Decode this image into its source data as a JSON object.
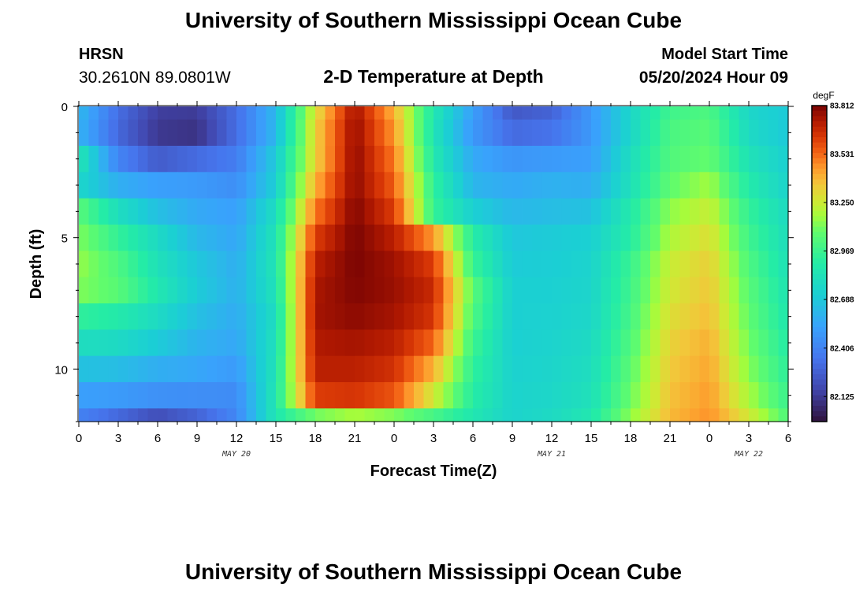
{
  "page_title": "University of Southern Mississippi Ocean Cube",
  "footer_title": "University of Southern Mississippi Ocean Cube",
  "station": {
    "name": "HRSN",
    "coords": "30.2610N  89.0801W"
  },
  "model_start": {
    "label": "Model Start Time",
    "value": "05/20/2024 Hour 09"
  },
  "chart_data": {
    "type": "heatmap",
    "title": "2-D Temperature at Depth",
    "xlabel": "Forecast Time(Z)",
    "ylabel": "Depth (ft)",
    "x_ticks": [
      "0",
      "3",
      "6",
      "9",
      "12",
      "15",
      "18",
      "21",
      "0",
      "3",
      "6",
      "9",
      "12",
      "15",
      "18",
      "21",
      "0",
      "3",
      "6"
    ],
    "x_range_hours": [
      0,
      54
    ],
    "date_labels": [
      {
        "text": "MAY 20",
        "hour": 12
      },
      {
        "text": "MAY 21",
        "hour": 36
      },
      {
        "text": "MAY 22",
        "hour": 51
      }
    ],
    "y_ticks": [
      "0",
      "5",
      "10"
    ],
    "y_range": [
      0,
      12
    ],
    "y_inverted": true,
    "colorbar": {
      "unit": "degF",
      "ticks": [
        "83.812",
        "83.531",
        "83.250",
        "82.969",
        "82.688",
        "82.406",
        "82.125"
      ],
      "min": 81.98,
      "max": 83.812
    },
    "depths_ft": [
      0,
      1,
      2,
      3,
      4,
      5,
      6,
      7,
      8,
      9,
      10,
      11,
      12
    ],
    "hours": [
      0,
      3,
      6,
      9,
      12,
      15,
      18,
      21,
      24,
      27,
      30,
      33,
      36,
      39,
      42,
      45,
      48,
      51,
      54
    ],
    "values_degF": [
      [
        82.62,
        82.32,
        82.14,
        82.13,
        82.32,
        82.62,
        83.28,
        83.75,
        83.4,
        82.86,
        82.52,
        82.24,
        82.28,
        82.49,
        82.76,
        82.98,
        83.02,
        82.76,
        82.69
      ],
      [
        82.6,
        82.3,
        82.12,
        82.1,
        82.32,
        82.62,
        83.32,
        83.77,
        83.45,
        82.84,
        82.49,
        82.31,
        82.34,
        82.49,
        82.76,
        83.01,
        83.05,
        82.78,
        82.69
      ],
      [
        82.86,
        82.41,
        82.25,
        82.31,
        82.38,
        82.7,
        83.32,
        83.78,
        83.5,
        82.87,
        82.56,
        82.48,
        82.5,
        82.52,
        82.8,
        83.03,
        83.08,
        82.83,
        82.72
      ],
      [
        82.76,
        82.58,
        82.52,
        82.5,
        82.45,
        82.72,
        83.4,
        83.78,
        83.55,
        82.93,
        82.61,
        82.56,
        82.59,
        82.58,
        82.82,
        83.07,
        83.17,
        82.88,
        82.74
      ],
      [
        83.05,
        82.8,
        82.65,
        82.56,
        82.52,
        82.8,
        83.5,
        83.8,
        83.62,
        82.95,
        82.72,
        82.62,
        82.64,
        82.66,
        82.88,
        83.14,
        83.24,
        82.94,
        82.78
      ],
      [
        83.12,
        82.94,
        82.78,
        82.62,
        82.55,
        82.84,
        83.62,
        83.81,
        83.7,
        83.45,
        82.9,
        82.68,
        82.7,
        82.72,
        82.9,
        83.19,
        83.29,
        82.98,
        82.8
      ],
      [
        83.15,
        83.02,
        82.82,
        82.68,
        82.58,
        82.85,
        83.7,
        83.81,
        83.75,
        83.62,
        82.96,
        82.7,
        82.71,
        82.74,
        82.96,
        83.24,
        83.33,
        83.02,
        82.82
      ],
      [
        83.12,
        83.05,
        82.86,
        82.7,
        82.59,
        82.83,
        83.73,
        83.8,
        83.76,
        83.67,
        83.05,
        82.72,
        82.72,
        82.75,
        82.98,
        83.26,
        83.35,
        83.05,
        82.84
      ],
      [
        82.93,
        82.88,
        82.78,
        82.65,
        82.57,
        82.8,
        83.74,
        83.78,
        83.74,
        83.64,
        83.02,
        82.72,
        82.73,
        82.76,
        83.0,
        83.29,
        83.37,
        83.07,
        82.86
      ],
      [
        82.8,
        82.78,
        82.7,
        82.6,
        82.55,
        82.82,
        83.72,
        83.74,
        83.7,
        83.54,
        82.97,
        82.72,
        82.74,
        82.78,
        83.03,
        83.32,
        83.4,
        83.1,
        82.89
      ],
      [
        82.66,
        82.64,
        82.58,
        82.55,
        82.5,
        82.84,
        83.7,
        83.7,
        83.65,
        83.4,
        82.93,
        82.73,
        82.75,
        82.8,
        83.06,
        83.34,
        83.42,
        83.13,
        82.92
      ],
      [
        82.52,
        82.5,
        82.46,
        82.45,
        82.44,
        82.86,
        83.62,
        83.64,
        83.57,
        83.26,
        82.9,
        82.74,
        82.76,
        82.82,
        83.09,
        83.36,
        83.44,
        83.18,
        82.96
      ],
      [
        82.4,
        82.3,
        82.2,
        82.28,
        82.42,
        82.86,
        83.1,
        83.18,
        83.12,
        83.0,
        82.86,
        82.74,
        82.78,
        82.86,
        83.14,
        83.38,
        83.46,
        83.26,
        83.02
      ]
    ]
  }
}
